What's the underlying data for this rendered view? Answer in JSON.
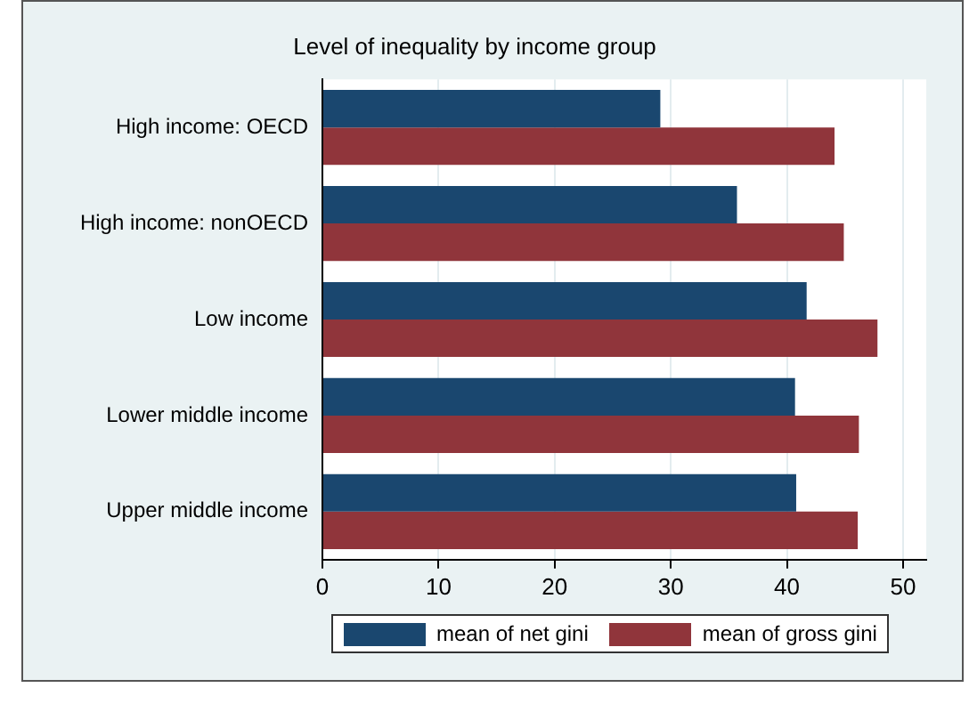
{
  "chart_data": {
    "type": "bar",
    "orientation": "horizontal",
    "title": "Level of inequality by income group",
    "categories": [
      "High income: OECD",
      "High income: nonOECD",
      "Low income",
      "Lower middle income",
      "Upper middle income"
    ],
    "series": [
      {
        "name": "mean of net gini",
        "color": "#1a476f",
        "values": [
          29.1,
          35.7,
          41.7,
          40.7,
          40.8
        ]
      },
      {
        "name": "mean of gross gini",
        "color": "#90353b",
        "values": [
          44.1,
          44.9,
          47.8,
          46.2,
          46.1
        ]
      }
    ],
    "xlim": [
      0,
      52
    ],
    "xticks": [
      0,
      10,
      20,
      30,
      40,
      50
    ],
    "grid": "x",
    "legend": "bottom"
  }
}
